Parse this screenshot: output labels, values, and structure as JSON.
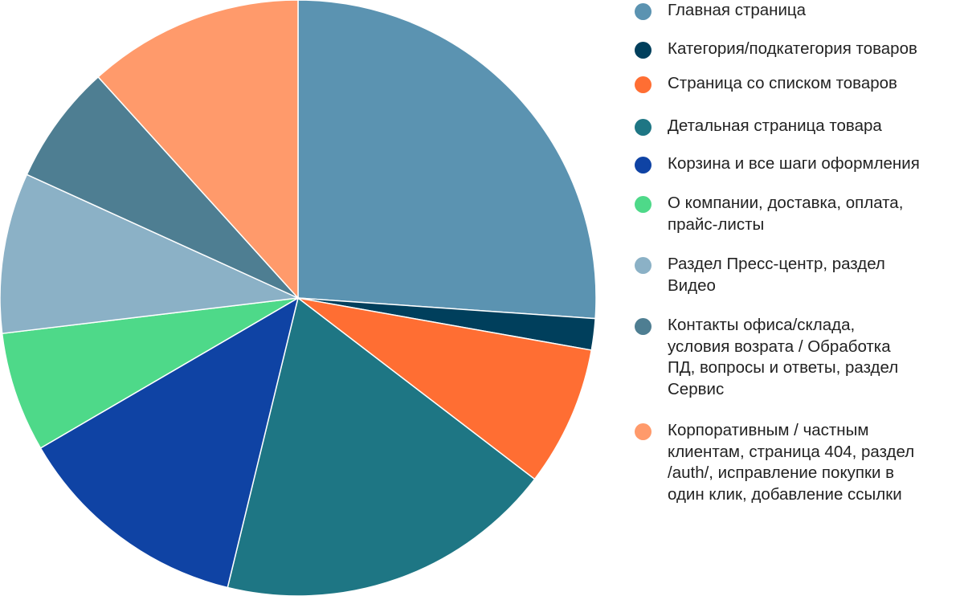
{
  "chart_data": {
    "type": "pie",
    "title": "",
    "start_angle_deg": 0,
    "direction": "clockwise",
    "legend_position": "right",
    "slices": [
      {
        "label": "Главная страница",
        "value": 26.1,
        "color": "#5b93b1"
      },
      {
        "label": "Категория/подкатегория товаров",
        "value": 1.7,
        "color": "#003f5c"
      },
      {
        "label": "Страница со списком товаров",
        "value": 7.6,
        "color": "#ff6e33"
      },
      {
        "label": "Детальная страница товара",
        "value": 18.4,
        "color": "#1e7684"
      },
      {
        "label": "Корзина и все шаги оформления",
        "value": 12.8,
        "color": "#0f43a4"
      },
      {
        "label": "О компании, доставка, оплата,\nпрайс-листы",
        "value": 6.5,
        "color": "#4ed989"
      },
      {
        "label": "Раздел Пресс-центр, раздел\nВидео",
        "value": 8.7,
        "color": "#8bb1c6"
      },
      {
        "label": "Контакты офиса/склада,\nусловия возрата / Обработка\nПД, вопросы и ответы, раздел\nСервис",
        "value": 6.5,
        "color": "#4e7e92"
      },
      {
        "label": "Корпоративным / частным\nклиентам, страница 404, раздел\n/auth/, исправление покупки в\nодин клик, добавление ссылки",
        "value": 11.7,
        "color": "#ff9a6b"
      }
    ]
  }
}
